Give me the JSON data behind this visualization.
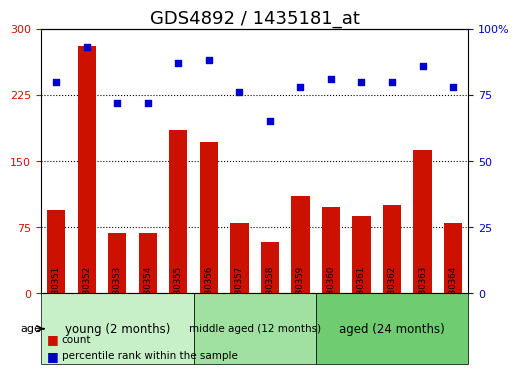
{
  "title": "GDS4892 / 1435181_at",
  "samples": [
    "GSM1230351",
    "GSM1230352",
    "GSM1230353",
    "GSM1230354",
    "GSM1230355",
    "GSM1230356",
    "GSM1230357",
    "GSM1230358",
    "GSM1230359",
    "GSM1230360",
    "GSM1230361",
    "GSM1230362",
    "GSM1230363",
    "GSM1230364"
  ],
  "counts": [
    95,
    280,
    68,
    68,
    185,
    172,
    80,
    58,
    110,
    98,
    88,
    100,
    163,
    80
  ],
  "percentiles": [
    80,
    93,
    72,
    72,
    87,
    88,
    76,
    65,
    78,
    81,
    80,
    80,
    86,
    78
  ],
  "bar_color": "#CC1100",
  "dot_color": "#0000CC",
  "left_ylim": [
    0,
    300
  ],
  "right_ylim": [
    0,
    100
  ],
  "left_yticks": [
    0,
    75,
    150,
    225,
    300
  ],
  "right_yticks": [
    0,
    25,
    50,
    75,
    100
  ],
  "groups": [
    {
      "label": "young (2 months)",
      "start": 0,
      "end": 5,
      "color": "#90EE90"
    },
    {
      "label": "middle aged (12 months)",
      "start": 5,
      "end": 9,
      "color": "#66CC66"
    },
    {
      "label": "aged (24 months)",
      "start": 9,
      "end": 14,
      "color": "#44BB44"
    }
  ],
  "group_row_bg": "#C8E6C9",
  "age_label": "age",
  "legend_items": [
    {
      "label": "count",
      "color": "#CC1100",
      "marker": "s"
    },
    {
      "label": "percentile rank within the sample",
      "color": "#0000CC",
      "marker": "s"
    }
  ],
  "title_fontsize": 13,
  "tick_fontsize": 7,
  "bar_width": 0.6,
  "dot_yoffset_scale": 1.0
}
